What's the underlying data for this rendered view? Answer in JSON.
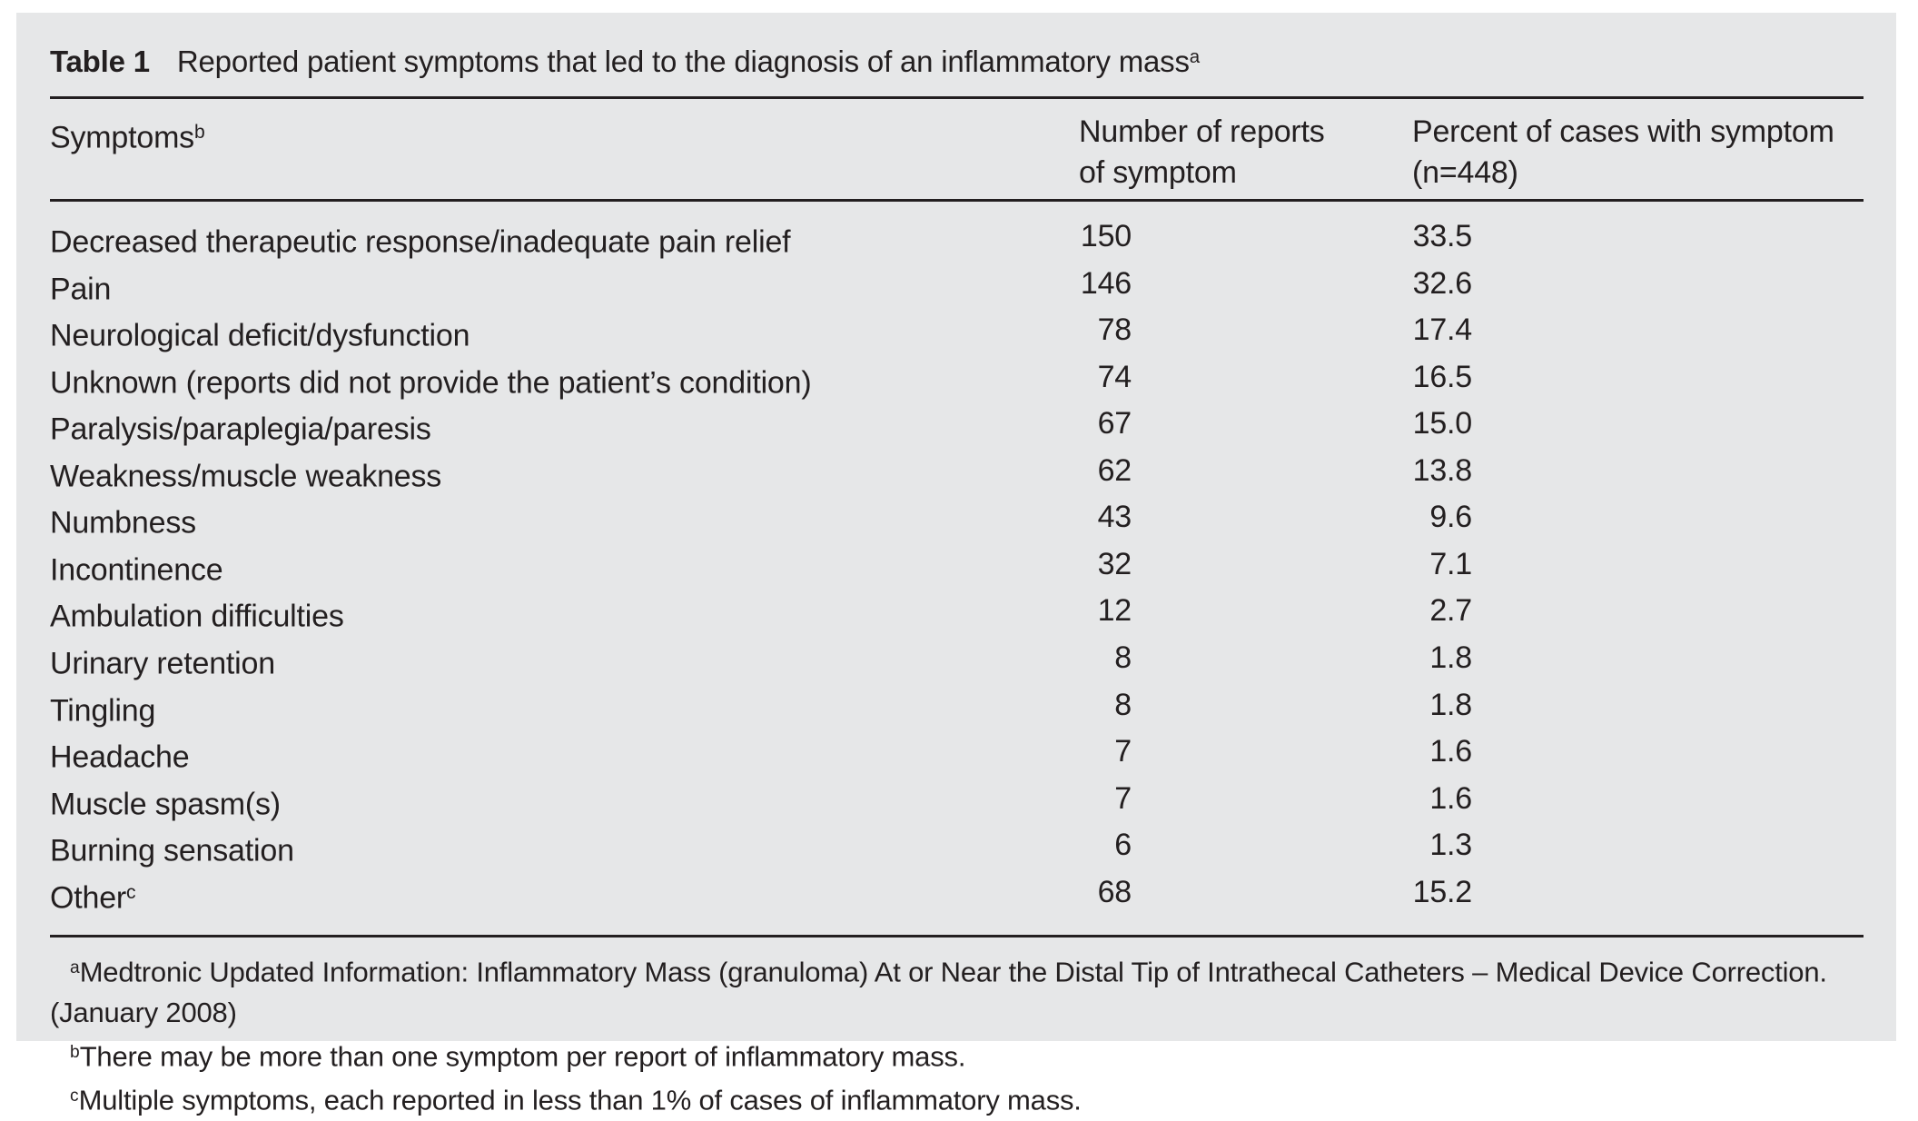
{
  "title": {
    "label": "Table 1",
    "text": "Reported patient symptoms that led to the diagnosis of an inflammatory mass",
    "footnote_ref": "a"
  },
  "table": {
    "columns": [
      {
        "label": "Symptoms",
        "footnote_ref": "b"
      },
      {
        "lines": [
          "Number of reports",
          "of symptom"
        ]
      },
      {
        "lines": [
          "Percent of cases with symptom",
          "(n=448)"
        ]
      }
    ],
    "rows": [
      {
        "symptom": "Decreased therapeutic response/inadequate pain relief",
        "reports": "150",
        "percent": "33.5"
      },
      {
        "symptom": "Pain",
        "reports": "146",
        "percent": "32.6"
      },
      {
        "symptom": "Neurological deficit/dysfunction",
        "reports": "78",
        "percent": "17.4"
      },
      {
        "symptom": "Unknown (reports did not provide the patient’s condition)",
        "reports": "74",
        "percent": "16.5"
      },
      {
        "symptom": "Paralysis/paraplegia/paresis",
        "reports": "67",
        "percent": "15.0"
      },
      {
        "symptom": "Weakness/muscle weakness",
        "reports": "62",
        "percent": "13.8"
      },
      {
        "symptom": "Numbness",
        "reports": "43",
        "percent": "9.6"
      },
      {
        "symptom": "Incontinence",
        "reports": "32",
        "percent": "7.1"
      },
      {
        "symptom": "Ambulation difficulties",
        "reports": "12",
        "percent": "2.7"
      },
      {
        "symptom": "Urinary retention",
        "reports": "8",
        "percent": "1.8"
      },
      {
        "symptom": "Tingling",
        "reports": "8",
        "percent": "1.8"
      },
      {
        "symptom": "Headache",
        "reports": "7",
        "percent": "1.6"
      },
      {
        "symptom": "Muscle spasm(s)",
        "reports": "7",
        "percent": "1.6"
      },
      {
        "symptom": "Burning sensation",
        "reports": "6",
        "percent": "1.3"
      },
      {
        "symptom": "Other",
        "footnote_ref": "c",
        "reports": "68",
        "percent": "15.2"
      }
    ]
  },
  "footnotes": [
    {
      "ref": "a",
      "text": "Medtronic Updated Information: Inflammatory Mass (granuloma) At or Near the Distal Tip of Intrathecal Catheters – Medical Device Correction. (January 2008)"
    },
    {
      "ref": "b",
      "text": "There may be more than one symptom per report of inflammatory mass."
    },
    {
      "ref": "c",
      "text": "Multiple symptoms, each reported in less than 1% of cases of inflammatory mass."
    }
  ],
  "colors": {
    "panel_bg": "#e6e7e8",
    "text": "#231f20",
    "rule": "#231f20"
  }
}
